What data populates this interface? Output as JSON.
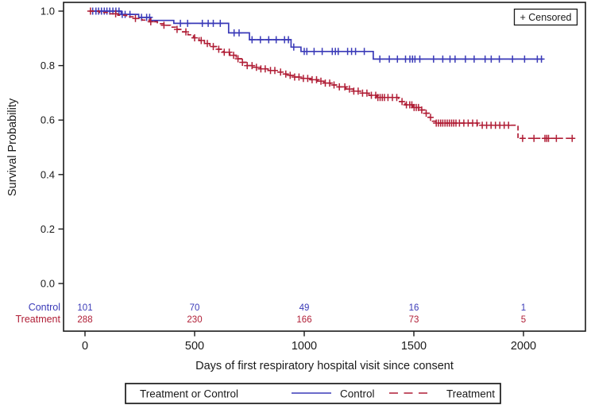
{
  "figure": {
    "background": "#ffffff",
    "frame_color": "#1a1a1a",
    "text_color": "#1a1a1a"
  },
  "chart_data": {
    "type": "line",
    "subtype": "kaplan-meier-step",
    "title": "",
    "xlabel": "Days of first respiratory hospital visit since consent",
    "ylabel": "Survival Probability",
    "xticks": [
      0,
      500,
      1000,
      1500,
      2000
    ],
    "xtick_labels": [
      "0",
      "500",
      "1000",
      "1500",
      "2000"
    ],
    "yticks": [
      1.0,
      0.8,
      0.6,
      0.4,
      0.2,
      0.0
    ],
    "ytick_labels": [
      "1.0",
      "0.8",
      "0.6",
      "0.4",
      "0.2",
      "0.0"
    ],
    "xlim": [
      -98,
      2281
    ],
    "ylim": [
      0.0,
      1.0
    ],
    "grid": false,
    "censored_marker_legend": "+ Censored",
    "legend": {
      "title": "Treatment or Control",
      "position": "bottom",
      "entries": [
        {
          "label": "Control",
          "style": "solid",
          "color": "#3a3ab8"
        },
        {
          "label": "Treatment",
          "style": "dashed",
          "color": "#b01e36"
        }
      ]
    },
    "series": [
      {
        "name": "Control",
        "color": "#3a3ab8",
        "line": "solid",
        "end_day": 2090,
        "steps": [
          [
            20,
            1.0
          ],
          [
            165,
            0.988
          ],
          [
            245,
            0.977
          ],
          [
            300,
            0.966
          ],
          [
            405,
            0.955
          ],
          [
            655,
            0.92
          ],
          [
            750,
            0.895
          ],
          [
            940,
            0.868
          ],
          [
            985,
            0.852
          ],
          [
            1315,
            0.824
          ]
        ],
        "censor_days": [
          35,
          50,
          62,
          75,
          88,
          100,
          113,
          127,
          141,
          155,
          170,
          183,
          205,
          258,
          281,
          295,
          435,
          468,
          535,
          562,
          585,
          617,
          680,
          703,
          762,
          800,
          838,
          872,
          910,
          928,
          952,
          1000,
          1012,
          1045,
          1082,
          1128,
          1142,
          1155,
          1198,
          1216,
          1234,
          1274,
          1345,
          1388,
          1425,
          1462,
          1482,
          1494,
          1505,
          1527,
          1590,
          1632,
          1665,
          1688,
          1735,
          1775,
          1825,
          1853,
          1890,
          1950,
          2005,
          2063,
          2082
        ]
      },
      {
        "name": "Treatment",
        "color": "#b01e36",
        "line": "dashed",
        "end_day": 2232,
        "steps": [
          [
            20,
            1.0
          ],
          [
            65,
            0.995
          ],
          [
            110,
            0.99
          ],
          [
            150,
            0.985
          ],
          [
            190,
            0.979
          ],
          [
            225,
            0.973
          ],
          [
            260,
            0.967
          ],
          [
            295,
            0.961
          ],
          [
            330,
            0.954
          ],
          [
            360,
            0.948
          ],
          [
            390,
            0.941
          ],
          [
            415,
            0.933
          ],
          [
            445,
            0.924
          ],
          [
            470,
            0.913
          ],
          [
            495,
            0.902
          ],
          [
            520,
            0.892
          ],
          [
            545,
            0.881
          ],
          [
            570,
            0.87
          ],
          [
            600,
            0.86
          ],
          [
            630,
            0.849
          ],
          [
            660,
            0.838
          ],
          [
            690,
            0.825
          ],
          [
            715,
            0.812
          ],
          [
            735,
            0.8
          ],
          [
            765,
            0.794
          ],
          [
            800,
            0.788
          ],
          [
            835,
            0.782
          ],
          [
            870,
            0.776
          ],
          [
            900,
            0.769
          ],
          [
            920,
            0.764
          ],
          [
            950,
            0.758
          ],
          [
            990,
            0.753
          ],
          [
            1030,
            0.748
          ],
          [
            1060,
            0.743
          ],
          [
            1090,
            0.736
          ],
          [
            1120,
            0.729
          ],
          [
            1155,
            0.722
          ],
          [
            1190,
            0.714
          ],
          [
            1225,
            0.706
          ],
          [
            1260,
            0.699
          ],
          [
            1295,
            0.691
          ],
          [
            1330,
            0.683
          ],
          [
            1430,
            0.668
          ],
          [
            1460,
            0.656
          ],
          [
            1495,
            0.646
          ],
          [
            1525,
            0.637
          ],
          [
            1550,
            0.625
          ],
          [
            1570,
            0.61
          ],
          [
            1585,
            0.596
          ],
          [
            1600,
            0.589
          ],
          [
            1790,
            0.581
          ],
          [
            1975,
            0.533
          ]
        ],
        "censor_days": [
          25,
          140,
          230,
          300,
          360,
          420,
          460,
          500,
          530,
          558,
          585,
          610,
          635,
          658,
          678,
          698,
          718,
          740,
          762,
          782,
          802,
          822,
          846,
          866,
          892,
          916,
          936,
          956,
          976,
          996,
          1016,
          1036,
          1056,
          1076,
          1096,
          1116,
          1136,
          1160,
          1185,
          1206,
          1226,
          1246,
          1266,
          1286,
          1306,
          1326,
          1336,
          1346,
          1356,
          1366,
          1382,
          1402,
          1422,
          1446,
          1466,
          1481,
          1491,
          1501,
          1511,
          1521,
          1536,
          1556,
          1576,
          1602,
          1612,
          1622,
          1632,
          1642,
          1652,
          1662,
          1672,
          1682,
          1692,
          1708,
          1728,
          1748,
          1768,
          1788,
          1812,
          1832,
          1852,
          1872,
          1892,
          1912,
          1932,
          1996,
          2048,
          2098,
          2106,
          2114,
          2150,
          2222
        ]
      }
    ],
    "at_risk": {
      "times": [
        0,
        500,
        1000,
        1500,
        2000
      ],
      "rows": [
        {
          "label": "Control",
          "color": "#3a3ab8",
          "counts": [
            "101",
            "70",
            "49",
            "16",
            "1"
          ]
        },
        {
          "label": "Treatment",
          "color": "#b01e36",
          "counts": [
            "288",
            "230",
            "166",
            "73",
            "5"
          ]
        }
      ]
    }
  }
}
